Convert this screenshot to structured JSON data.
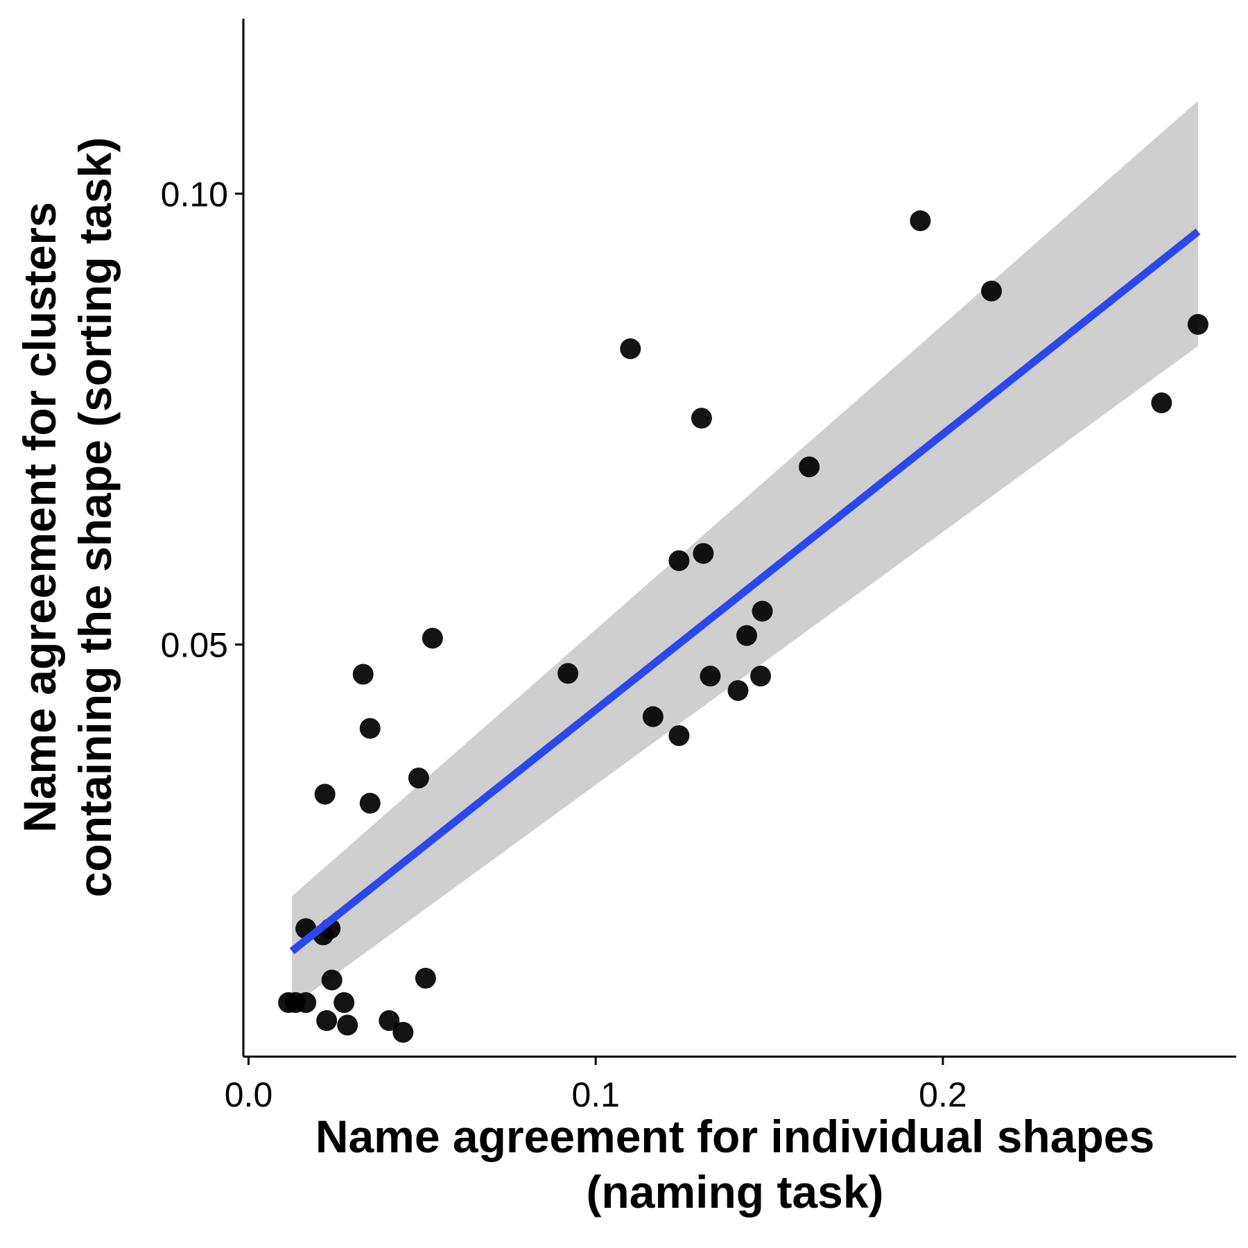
{
  "colors": {
    "background": "#ffffff",
    "points": "#000000",
    "fit_line": "#2b47ee",
    "confidence_band": "#cfcfcf",
    "axis": "#000000"
  },
  "chart_data": {
    "type": "scatter",
    "xlabel": [
      "Name agreement for individual shapes",
      "(naming task)"
    ],
    "ylabel": [
      "Name agreement for clusters",
      "containing the shape (sorting task)"
    ],
    "xlim": [
      -0.0015,
      0.2845
    ],
    "ylim": [
      0.0043,
      0.1194
    ],
    "x_ticks": [
      0.0,
      0.1,
      0.2
    ],
    "x_tick_labels": [
      "0.0",
      "0.1",
      "0.2"
    ],
    "y_ticks": [
      0.05,
      0.1
    ],
    "y_tick_labels": [
      "0.05",
      "0.10"
    ],
    "grid": false,
    "legend": "none",
    "points": [
      {
        "x": 0.0115,
        "y": 0.0103
      },
      {
        "x": 0.0135,
        "y": 0.0103
      },
      {
        "x": 0.0165,
        "y": 0.0103
      },
      {
        "x": 0.0165,
        "y": 0.0185
      },
      {
        "x": 0.0215,
        "y": 0.0178
      },
      {
        "x": 0.0235,
        "y": 0.0185
      },
      {
        "x": 0.0225,
        "y": 0.0083
      },
      {
        "x": 0.024,
        "y": 0.0128
      },
      {
        "x": 0.0275,
        "y": 0.0103
      },
      {
        "x": 0.0285,
        "y": 0.0078
      },
      {
        "x": 0.0405,
        "y": 0.0083
      },
      {
        "x": 0.0445,
        "y": 0.007
      },
      {
        "x": 0.051,
        "y": 0.013
      },
      {
        "x": 0.022,
        "y": 0.0334
      },
      {
        "x": 0.033,
        "y": 0.0467
      },
      {
        "x": 0.035,
        "y": 0.0407
      },
      {
        "x": 0.035,
        "y": 0.0324
      },
      {
        "x": 0.049,
        "y": 0.0352
      },
      {
        "x": 0.053,
        "y": 0.0507
      },
      {
        "x": 0.092,
        "y": 0.0468
      },
      {
        "x": 0.11,
        "y": 0.0828
      },
      {
        "x": 0.1165,
        "y": 0.042
      },
      {
        "x": 0.124,
        "y": 0.0593
      },
      {
        "x": 0.124,
        "y": 0.0399
      },
      {
        "x": 0.1305,
        "y": 0.0751
      },
      {
        "x": 0.131,
        "y": 0.0601
      },
      {
        "x": 0.133,
        "y": 0.0465
      },
      {
        "x": 0.141,
        "y": 0.0449
      },
      {
        "x": 0.1435,
        "y": 0.051
      },
      {
        "x": 0.1475,
        "y": 0.0465
      },
      {
        "x": 0.148,
        "y": 0.0537
      },
      {
        "x": 0.1615,
        "y": 0.0697
      },
      {
        "x": 0.1935,
        "y": 0.097
      },
      {
        "x": 0.214,
        "y": 0.0892
      },
      {
        "x": 0.263,
        "y": 0.0768
      },
      {
        "x": 0.2735,
        "y": 0.0855
      }
    ],
    "fit_line": {
      "x": [
        0.0125,
        0.2735
      ],
      "y": [
        0.016,
        0.0958
      ]
    },
    "confidence_band": {
      "x": [
        0.0125,
        0.2735
      ],
      "upper": [
        0.0221,
        0.1103
      ],
      "lower": [
        0.0099,
        0.0831
      ]
    }
  }
}
